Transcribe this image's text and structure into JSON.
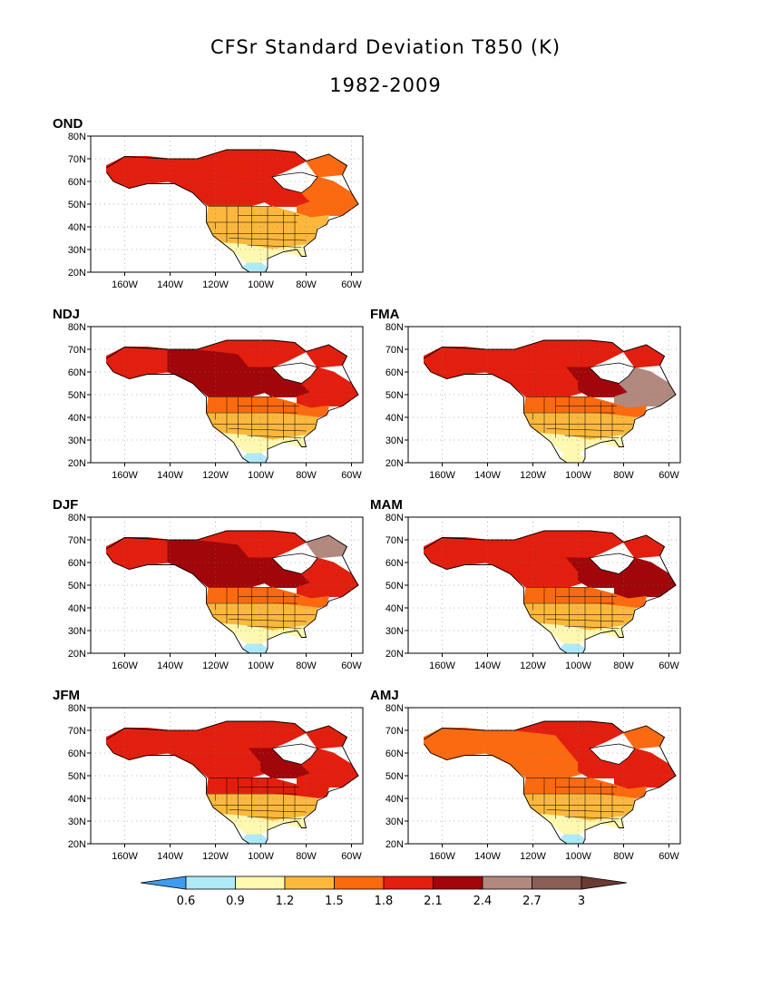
{
  "title_line1": "CFSr Standard Deviation T850 (K)",
  "title_line2": "1982-2009",
  "axes": {
    "lat_ticks": [
      "80N",
      "70N",
      "60N",
      "50N",
      "40N",
      "30N",
      "20N"
    ],
    "lon_ticks": [
      "160W",
      "140W",
      "120W",
      "100W",
      "80W",
      "60W"
    ]
  },
  "panels": [
    {
      "id": "OND",
      "label": "OND",
      "regions": {
        "west_ca": 5,
        "alaska": 5,
        "north_ca": 5,
        "hudson": 5,
        "east_ca": 4,
        "north_us": 3,
        "central_us": 3,
        "south_us": 2,
        "gulf": 1,
        "baffin": 4
      }
    },
    {
      "id": "NDJ",
      "label": "NDJ",
      "regions": {
        "west_ca": 6,
        "alaska": 5,
        "north_ca": 5,
        "hudson": 6,
        "east_ca": 5,
        "north_us": 4,
        "central_us": 3,
        "south_us": 2,
        "gulf": 1,
        "baffin": 5
      }
    },
    {
      "id": "FMA",
      "label": "FMA",
      "regions": {
        "west_ca": 5,
        "alaska": 5,
        "north_ca": 5,
        "hudson": 6,
        "east_ca": 7,
        "north_us": 4,
        "central_us": 3,
        "south_us": 2,
        "gulf": 2,
        "baffin": 5
      }
    },
    {
      "id": "DJF",
      "label": "DJF",
      "regions": {
        "west_ca": 6,
        "alaska": 5,
        "north_ca": 5,
        "hudson": 6,
        "east_ca": 5,
        "north_us": 4,
        "central_us": 3,
        "south_us": 2,
        "gulf": 1,
        "baffin": 7
      }
    },
    {
      "id": "MAM",
      "label": "MAM",
      "regions": {
        "west_ca": 5,
        "alaska": 5,
        "north_ca": 5,
        "hudson": 6,
        "east_ca": 6,
        "north_us": 4,
        "central_us": 3,
        "south_us": 2,
        "gulf": 1,
        "baffin": 5
      }
    },
    {
      "id": "JFM",
      "label": "JFM",
      "regions": {
        "west_ca": 5,
        "alaska": 5,
        "north_ca": 5,
        "hudson": 6,
        "east_ca": 5,
        "north_us": 5,
        "central_us": 3,
        "south_us": 2,
        "gulf": 1,
        "baffin": 5
      }
    },
    {
      "id": "AMJ",
      "label": "AMJ",
      "regions": {
        "west_ca": 4,
        "alaska": 4,
        "north_ca": 5,
        "hudson": 5,
        "east_ca": 5,
        "north_us": 4,
        "central_us": 3,
        "south_us": 2,
        "gulf": 1,
        "baffin": 4
      }
    }
  ],
  "legend": {
    "boundaries": [
      "0.6",
      "0.9",
      "1.2",
      "1.5",
      "1.8",
      "2.1",
      "2.4",
      "2.7",
      "3"
    ],
    "colors": [
      "#3d9cf0",
      "#aeeaf8",
      "#fff8b0",
      "#fbb83c",
      "#fb6a10",
      "#e21f0e",
      "#a0060a",
      "#b2897e",
      "#8a5e55",
      "#6a3b32"
    ]
  }
}
